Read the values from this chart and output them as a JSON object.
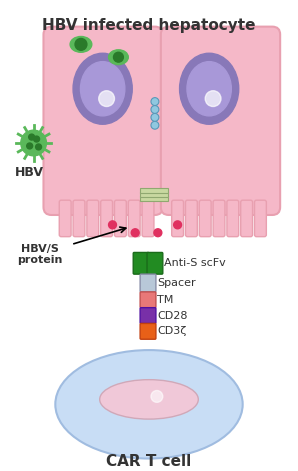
{
  "title_top": "HBV infected hepatocyte",
  "title_bottom": "CAR T cell",
  "label_hbv": "HBV",
  "label_hbvs": "HBV/S\nprotein",
  "label_antis": "Anti-S scFv",
  "label_spacer": "Spacer",
  "label_tm": "TM",
  "label_cd28": "CD28",
  "label_cd3z": "CD3ζ",
  "bg_color": "#ffffff",
  "cell_fill": "#f5b8c8",
  "cell_stroke": "#e8a0b0",
  "nucleus_fill": "#8878b8",
  "nucleus_inner": "#a898d8",
  "t_cell_fill": "#c8ddf5",
  "t_cell_stroke": "#a0bce0",
  "t_nucleus_fill": "#f0c8d8",
  "hbv_green": "#5ab85a",
  "hbv_dot_color": "#e03060",
  "connector_color": "#5ab85a",
  "spacer_color": "#b8c8d8",
  "tm_color": "#e87878",
  "cd28_color": "#7830a8",
  "cd3z_color": "#e86018",
  "tether_color": "#c8d8a0",
  "figsize": [
    2.98,
    4.71
  ],
  "dpi": 100
}
